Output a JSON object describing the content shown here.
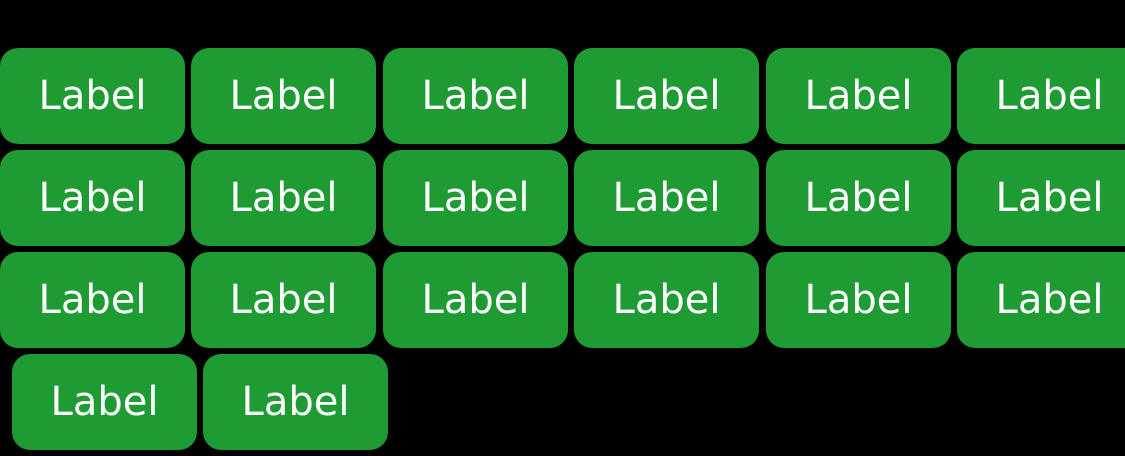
{
  "colors": {
    "background": "#000000",
    "chip": "#1e9c33",
    "chip_text": "#ffffff"
  },
  "chips": {
    "r1": [
      "Label",
      "Label",
      "Label",
      "Label",
      "Label",
      "Label"
    ],
    "r2": [
      "Label",
      "Label",
      "Label",
      "Label",
      "Label",
      "Label"
    ],
    "r3": [
      "Label",
      "Label",
      "Label",
      "Label",
      "Label",
      "Label"
    ],
    "r4": [
      "Label",
      "Label"
    ]
  }
}
